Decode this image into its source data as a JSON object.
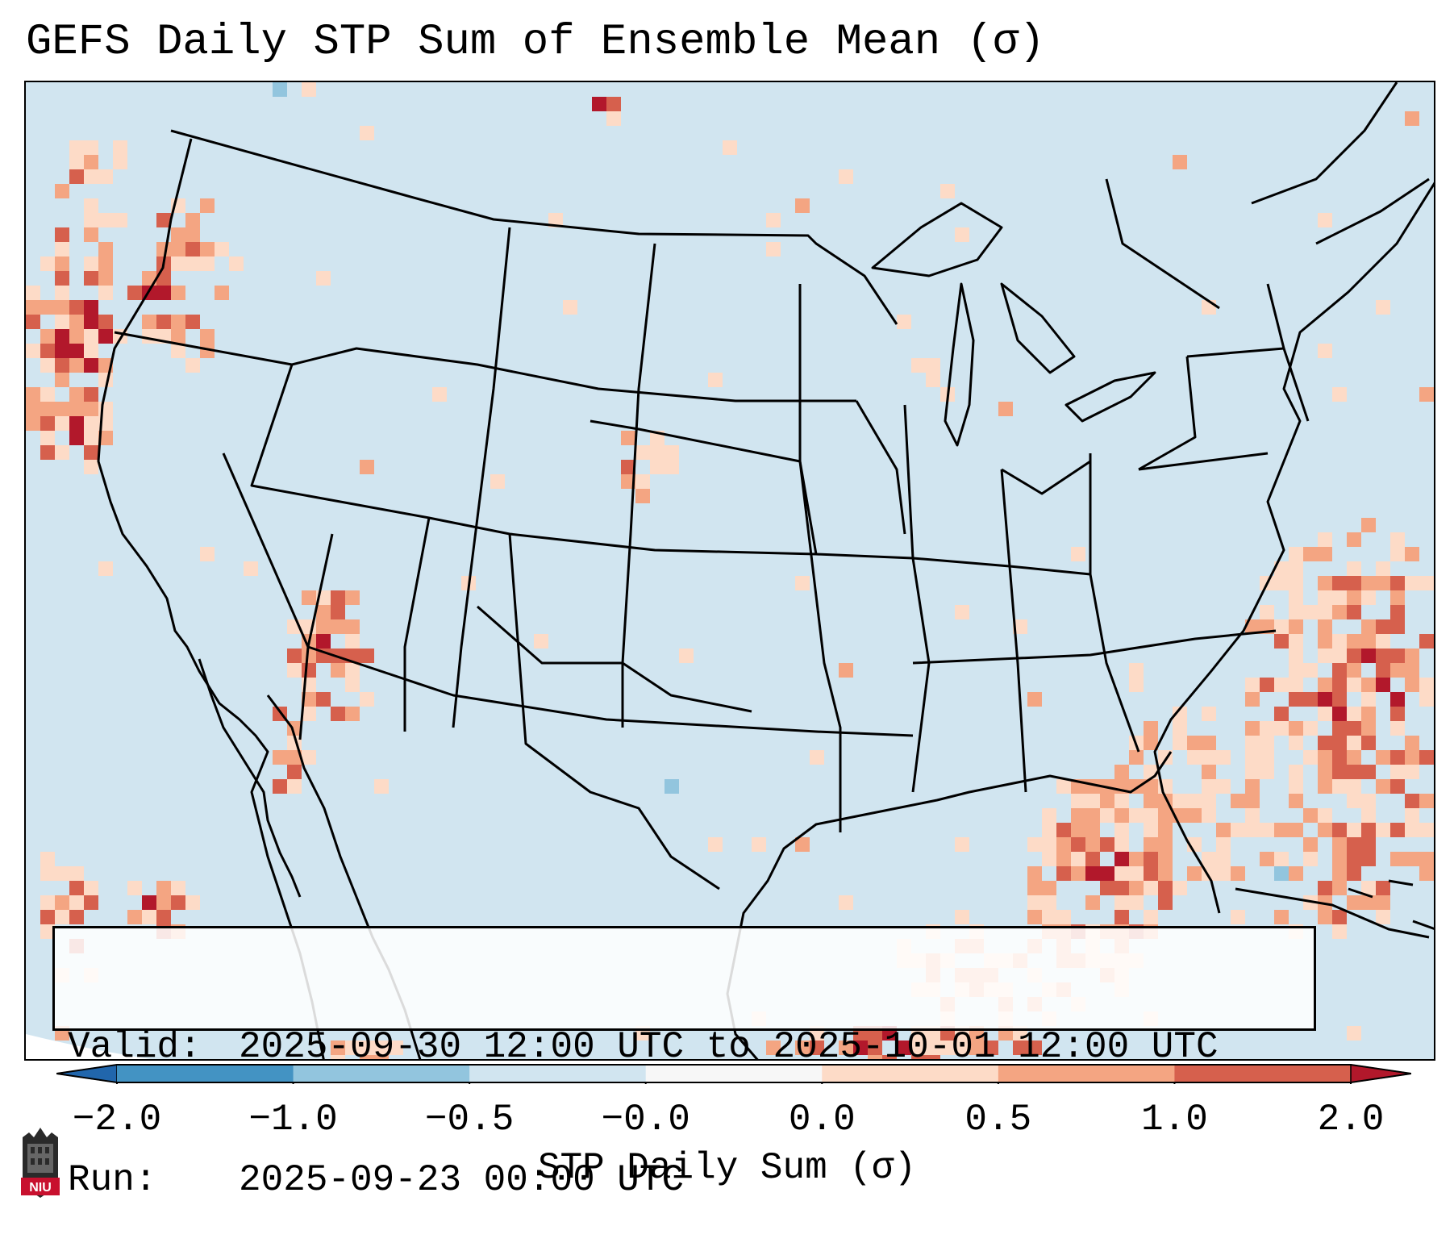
{
  "title": "GEFS Daily STP Sum of Ensemble Mean (σ)",
  "valid": {
    "label": "Valid:",
    "value": "2025-09-30 12:00 UTC to 2025-10-01 12:00 UTC"
  },
  "run": {
    "label": "Run:",
    "value": "2025-09-23 00:00 UTC"
  },
  "colorbar": {
    "label": "STP Daily Sum (σ)",
    "ticks": [
      "−2.0",
      "−1.0",
      "−0.5",
      "−0.0",
      "0.0",
      "0.5",
      "1.0",
      "2.0"
    ],
    "colors": [
      "#2166ac",
      "#4393c3",
      "#92c5de",
      "#d1e5f0",
      "#f7f7f7",
      "#fddbc7",
      "#f4a582",
      "#d6604d",
      "#b2182b"
    ]
  },
  "logo": {
    "text": "NIU",
    "color": "#c8102e"
  },
  "colors": {
    "ocean": "#d1e5f0",
    "land": "#d1e5f0",
    "border": "#000000"
  }
}
